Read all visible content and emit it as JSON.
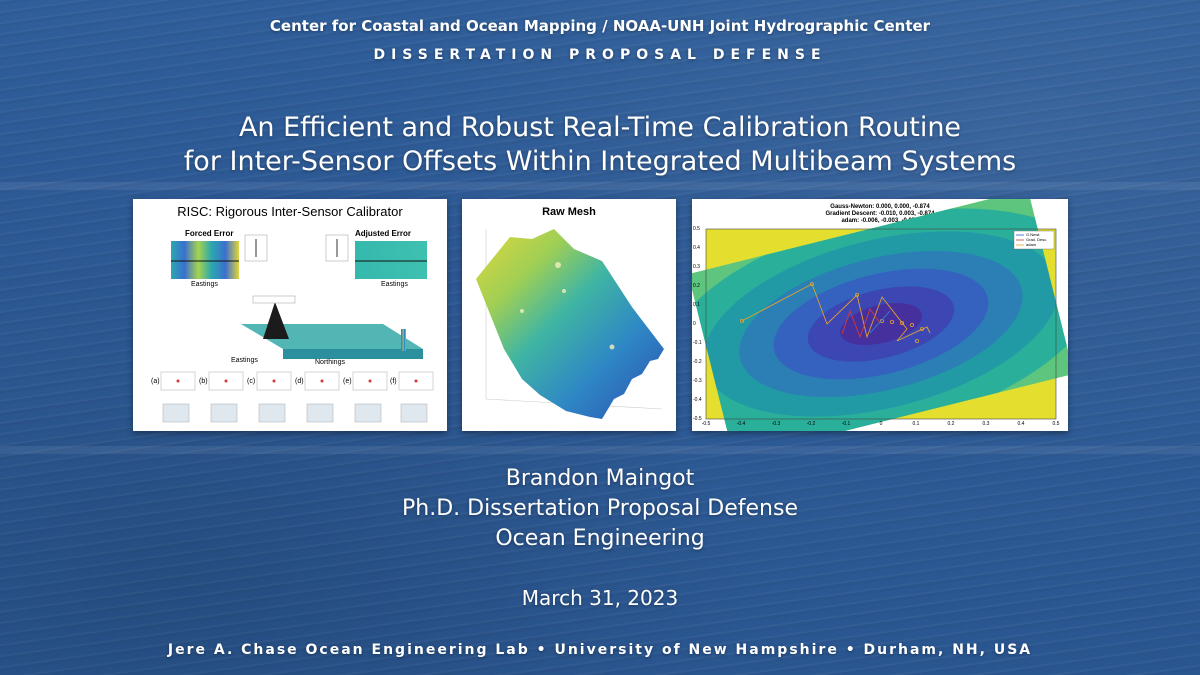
{
  "header": "Center for Coastal and Ocean Mapping / NOAA-UNH Joint Hydrographic Center",
  "subtitle": "DISSERTATION PROPOSAL DEFENSE",
  "title_line1": "An Efficient and Robust Real-Time Calibration Routine",
  "title_line2": "for Inter-Sensor Offsets Within Integrated Multibeam Systems",
  "figures": {
    "risc": {
      "title": "RISC: Rigorous Inter-Sensor Calibrator",
      "forced_error": "Forced Error",
      "adjusted_error": "Adjusted Error",
      "eastings": "Eastings",
      "northings": "Northings",
      "panel_labels": [
        "(a)",
        "(b)",
        "(c)",
        "(d)",
        "(e)",
        "(f)"
      ]
    },
    "raw_mesh": {
      "title": "Raw Mesh"
    },
    "optimizer": {
      "title_lines": [
        "Gauss-Newton: 0.000, 0.000, -0.874",
        "Gradient Descent: -0.010, 0.003, -0.874",
        "adam: -0.006, -0.003, -0.874"
      ],
      "legend": [
        "G.Newt.",
        "Grad. Desc.",
        "adam"
      ],
      "x_ticks": [
        "-0.5",
        "-0.4",
        "-0.3",
        "-0.2",
        "-0.1",
        "0",
        "0.1",
        "0.2",
        "0.3",
        "0.4",
        "0.5"
      ],
      "y_ticks": [
        "0.5",
        "0.4",
        "0.3",
        "0.2",
        "0.1",
        "0",
        "-0.1",
        "-0.2",
        "-0.3",
        "-0.4",
        "-0.5"
      ]
    }
  },
  "author": "Brandon Maingot",
  "degree": "Ph.D. Dissertation Proposal Defense",
  "department": "Ocean Engineering",
  "date": "March 31, 2023",
  "footer": "Jere A. Chase Ocean Engineering Lab • University of New Hampshire • Durham, NH, USA"
}
